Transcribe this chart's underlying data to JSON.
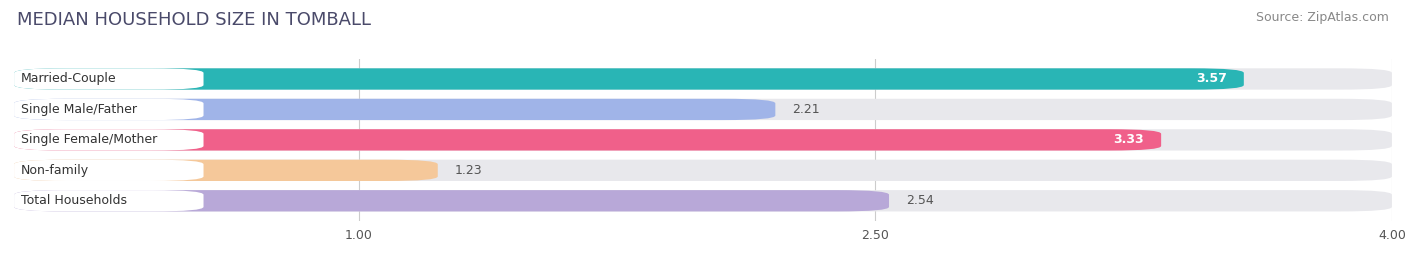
{
  "title": "MEDIAN HOUSEHOLD SIZE IN TOMBALL",
  "source": "Source: ZipAtlas.com",
  "categories": [
    "Married-Couple",
    "Single Male/Father",
    "Single Female/Mother",
    "Non-family",
    "Total Households"
  ],
  "values": [
    3.57,
    2.21,
    3.33,
    1.23,
    2.54
  ],
  "bar_colors": [
    "#29b5b5",
    "#a0b4e8",
    "#f0608a",
    "#f5c89a",
    "#b8a8d8"
  ],
  "background_color": "#ffffff",
  "bar_bg_color": "#e8e8ec",
  "xlim": [
    0,
    4.0
  ],
  "xticks": [
    1.0,
    2.5,
    4.0
  ],
  "title_fontsize": 13,
  "source_fontsize": 9,
  "label_fontsize": 9,
  "value_fontsize": 9
}
